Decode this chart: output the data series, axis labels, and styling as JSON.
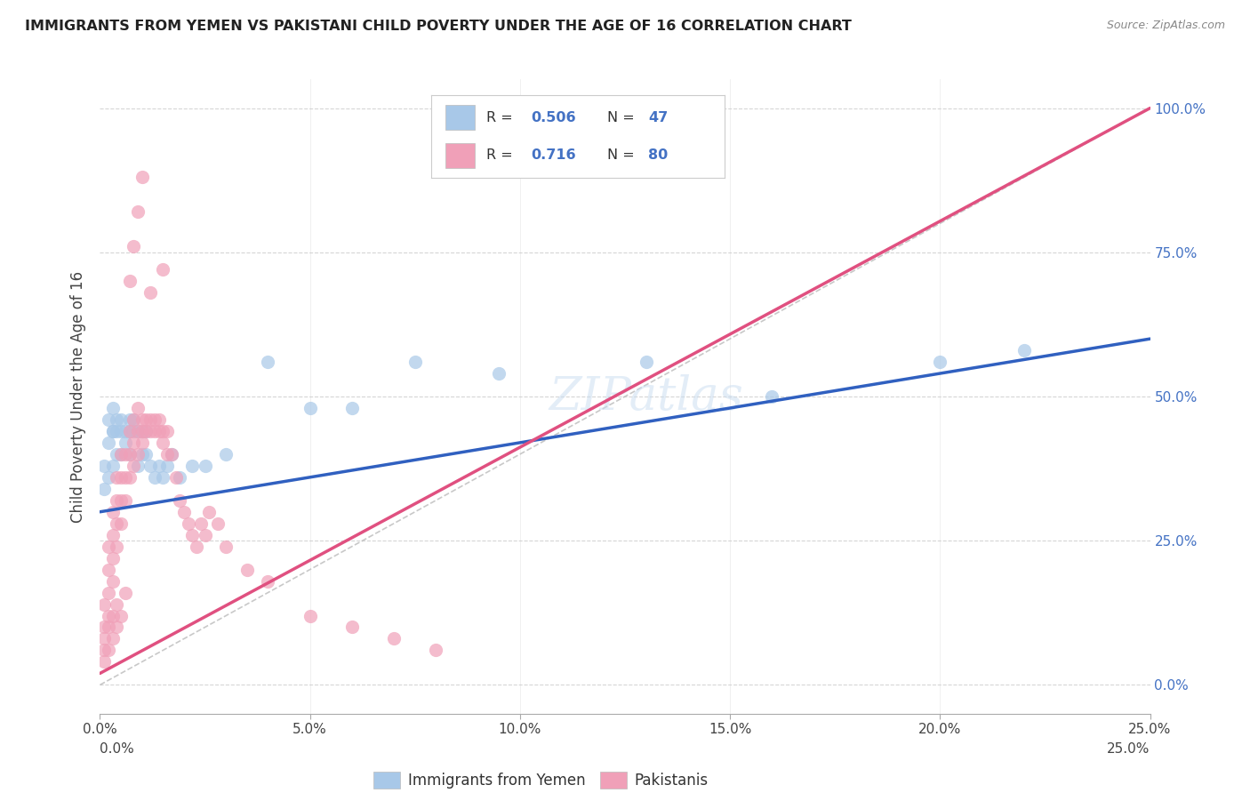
{
  "title": "IMMIGRANTS FROM YEMEN VS PAKISTANI CHILD POVERTY UNDER THE AGE OF 16 CORRELATION CHART",
  "source": "Source: ZipAtlas.com",
  "ylabel": "Child Poverty Under the Age of 16",
  "xlim": [
    0,
    0.25
  ],
  "ylim": [
    -0.05,
    1.05
  ],
  "legend_r1": "R = 0.506",
  "legend_n1": "N = 47",
  "legend_r2": "R =  0.716",
  "legend_n2": "N = 80",
  "legend_label1": "Immigrants from Yemen",
  "legend_label2": "Pakistanis",
  "color_blue": "#A8C8E8",
  "color_pink": "#F0A0B8",
  "color_blue_line": "#3060C0",
  "color_pink_line": "#E05080",
  "color_diag": "#BBBBBB",
  "blue_scatter_x": [
    0.001,
    0.001,
    0.002,
    0.002,
    0.002,
    0.003,
    0.003,
    0.003,
    0.003,
    0.004,
    0.004,
    0.004,
    0.005,
    0.005,
    0.005,
    0.006,
    0.006,
    0.007,
    0.007,
    0.007,
    0.008,
    0.008,
    0.009,
    0.009,
    0.01,
    0.01,
    0.011,
    0.011,
    0.012,
    0.013,
    0.014,
    0.015,
    0.016,
    0.017,
    0.019,
    0.022,
    0.025,
    0.03,
    0.04,
    0.05,
    0.06,
    0.075,
    0.095,
    0.13,
    0.16,
    0.2,
    0.22
  ],
  "blue_scatter_y": [
    0.34,
    0.38,
    0.36,
    0.42,
    0.46,
    0.38,
    0.44,
    0.48,
    0.44,
    0.4,
    0.44,
    0.46,
    0.44,
    0.4,
    0.46,
    0.42,
    0.44,
    0.44,
    0.4,
    0.46,
    0.44,
    0.46,
    0.44,
    0.38,
    0.44,
    0.4,
    0.44,
    0.4,
    0.38,
    0.36,
    0.38,
    0.36,
    0.38,
    0.4,
    0.36,
    0.38,
    0.38,
    0.4,
    0.56,
    0.48,
    0.48,
    0.56,
    0.54,
    0.56,
    0.5,
    0.56,
    0.58
  ],
  "pink_scatter_x": [
    0.001,
    0.001,
    0.001,
    0.002,
    0.002,
    0.002,
    0.002,
    0.003,
    0.003,
    0.003,
    0.003,
    0.004,
    0.004,
    0.004,
    0.004,
    0.005,
    0.005,
    0.005,
    0.005,
    0.006,
    0.006,
    0.006,
    0.007,
    0.007,
    0.007,
    0.008,
    0.008,
    0.008,
    0.009,
    0.009,
    0.009,
    0.01,
    0.01,
    0.01,
    0.011,
    0.011,
    0.012,
    0.012,
    0.013,
    0.013,
    0.014,
    0.014,
    0.015,
    0.015,
    0.016,
    0.016,
    0.017,
    0.018,
    0.019,
    0.02,
    0.021,
    0.022,
    0.023,
    0.024,
    0.025,
    0.026,
    0.028,
    0.03,
    0.035,
    0.04,
    0.05,
    0.06,
    0.07,
    0.08,
    0.001,
    0.001,
    0.002,
    0.002,
    0.003,
    0.003,
    0.004,
    0.004,
    0.005,
    0.006,
    0.007,
    0.008,
    0.009,
    0.01,
    0.012,
    0.015
  ],
  "pink_scatter_y": [
    0.06,
    0.1,
    0.14,
    0.12,
    0.16,
    0.2,
    0.24,
    0.18,
    0.22,
    0.26,
    0.3,
    0.24,
    0.28,
    0.32,
    0.36,
    0.28,
    0.32,
    0.36,
    0.4,
    0.32,
    0.36,
    0.4,
    0.36,
    0.4,
    0.44,
    0.38,
    0.42,
    0.46,
    0.4,
    0.44,
    0.48,
    0.42,
    0.46,
    0.44,
    0.44,
    0.46,
    0.44,
    0.46,
    0.44,
    0.46,
    0.44,
    0.46,
    0.42,
    0.44,
    0.4,
    0.44,
    0.4,
    0.36,
    0.32,
    0.3,
    0.28,
    0.26,
    0.24,
    0.28,
    0.26,
    0.3,
    0.28,
    0.24,
    0.2,
    0.18,
    0.12,
    0.1,
    0.08,
    0.06,
    0.04,
    0.08,
    0.06,
    0.1,
    0.08,
    0.12,
    0.1,
    0.14,
    0.12,
    0.16,
    0.7,
    0.76,
    0.82,
    0.88,
    0.68,
    0.72
  ],
  "blue_line_x": [
    0.0,
    0.25
  ],
  "blue_line_y": [
    0.3,
    0.6
  ],
  "pink_line_x": [
    0.0,
    0.25
  ],
  "pink_line_y": [
    0.02,
    1.0
  ],
  "background_color": "#FFFFFF",
  "grid_color": "#CCCCCC",
  "xticks": [
    0.0,
    0.05,
    0.1,
    0.15,
    0.2,
    0.25
  ],
  "yticks": [
    0.0,
    0.25,
    0.5,
    0.75,
    1.0
  ]
}
